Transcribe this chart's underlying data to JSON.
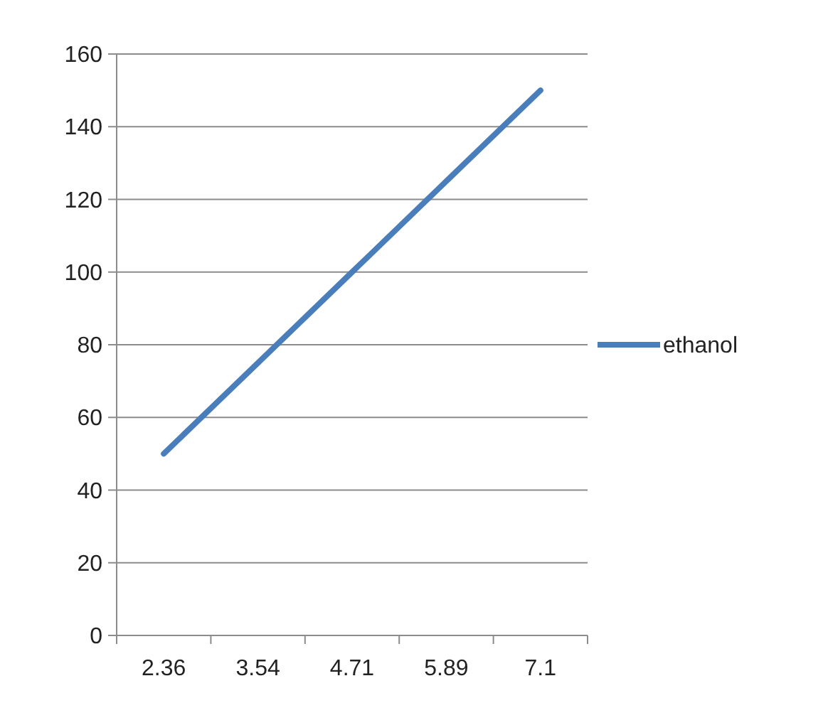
{
  "chart_data": {
    "type": "line",
    "categories": [
      "2.36",
      "3.54",
      "4.71",
      "5.89",
      "7.1"
    ],
    "series": [
      {
        "name": "ethanol",
        "color": "#4a7ebb",
        "values": [
          50,
          75,
          100,
          125,
          150
        ]
      }
    ],
    "ylim": [
      0,
      160
    ],
    "yticks": [
      0,
      20,
      40,
      60,
      80,
      100,
      120,
      140,
      160
    ],
    "grid": "y",
    "legend": "right"
  }
}
